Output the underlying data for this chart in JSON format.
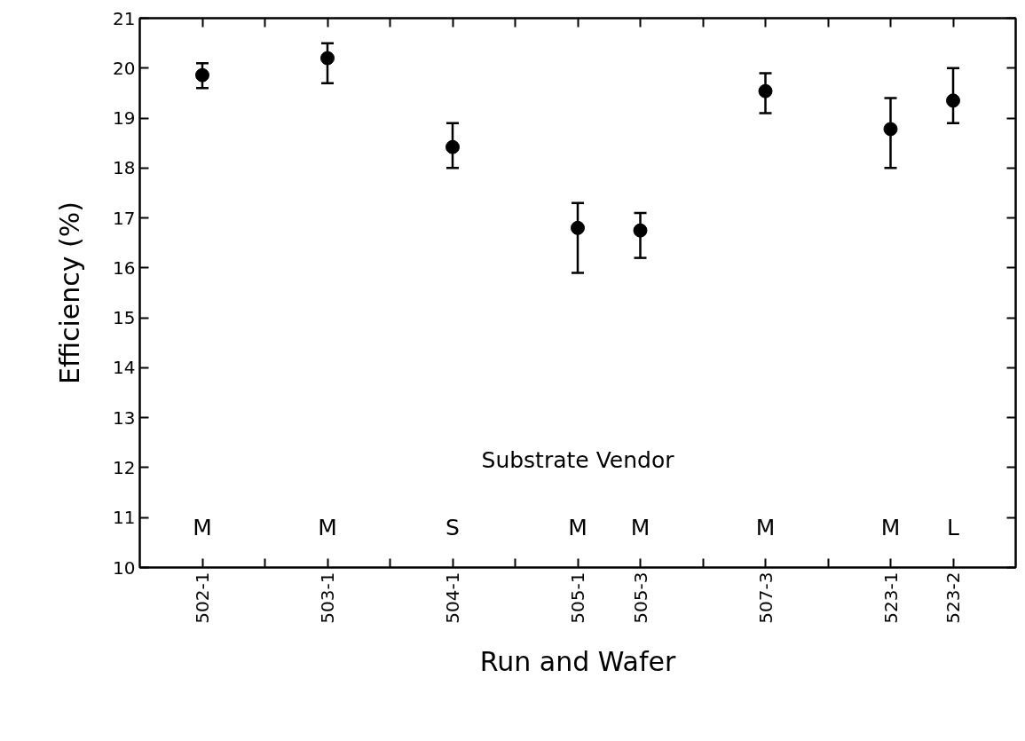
{
  "chart_data": {
    "type": "scatter",
    "xlabel": "Run and Wafer",
    "ylabel": "Efficiency (%)",
    "categories": [
      "502-1",
      null,
      "503-1",
      null,
      "504-1",
      null,
      "505-1",
      "505-3",
      null,
      "507-3",
      null,
      "523-1",
      "523-2"
    ],
    "values": [
      19.86,
      null,
      20.2,
      null,
      18.42,
      null,
      16.8,
      16.75,
      null,
      19.54,
      null,
      18.78,
      19.35
    ],
    "errors": [
      [
        19.6,
        20.1
      ],
      null,
      [
        19.7,
        20.5
      ],
      null,
      [
        18.0,
        18.9
      ],
      null,
      [
        15.9,
        17.3
      ],
      [
        16.2,
        17.1
      ],
      null,
      [
        19.1,
        19.9
      ],
      null,
      [
        18.0,
        19.4
      ],
      [
        18.9,
        20.0
      ]
    ],
    "color": "#000000",
    "marker": "circle",
    "ylim": [
      10,
      21
    ],
    "yticks": [
      10,
      11,
      12,
      13,
      14,
      15,
      16,
      17,
      18,
      19,
      20,
      21
    ],
    "annotations": [
      "Substrate Vendor",
      "M",
      "M",
      "S",
      "M",
      "M",
      "M",
      "M",
      "L"
    ]
  }
}
